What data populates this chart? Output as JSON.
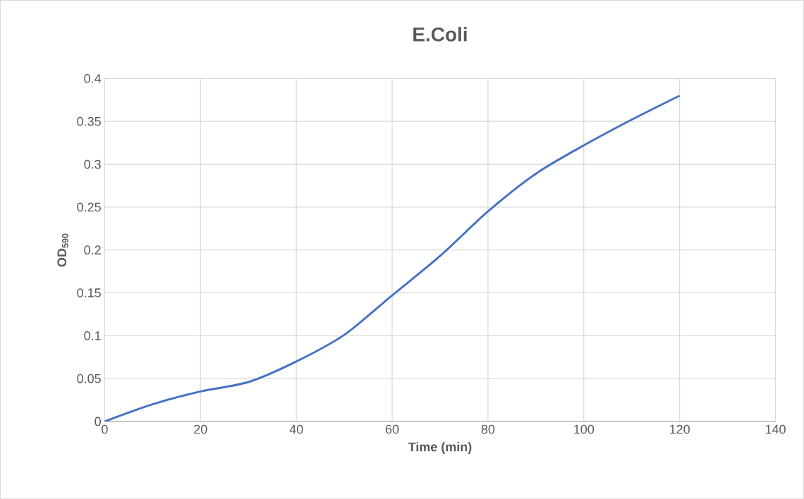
{
  "chart_data": {
    "type": "line",
    "title": "E.Coli",
    "xlabel": "Time (min)",
    "ylabel": "OD$_{590}$",
    "x": [
      0,
      10,
      20,
      30,
      40,
      50,
      60,
      70,
      80,
      90,
      100,
      110,
      120
    ],
    "series": [
      {
        "color": "#4472c4",
        "values": [
          0,
          0.02,
          0.035,
          0.046,
          0.07,
          0.101,
          0.147,
          0.193,
          0.245,
          0.289,
          0.322,
          0.352,
          0.38
        ]
      }
    ],
    "xlim": [
      0,
      140
    ],
    "xticks": [
      0,
      20,
      40,
      60,
      80,
      100,
      120,
      140
    ],
    "ylim": [
      0,
      0.4
    ],
    "yticks": [
      0,
      0.05,
      0.1,
      0.15,
      0.2,
      0.25,
      0.3,
      0.35,
      0.4
    ],
    "grid": true,
    "legend": false,
    "marker": "none",
    "line_style": "solid"
  }
}
